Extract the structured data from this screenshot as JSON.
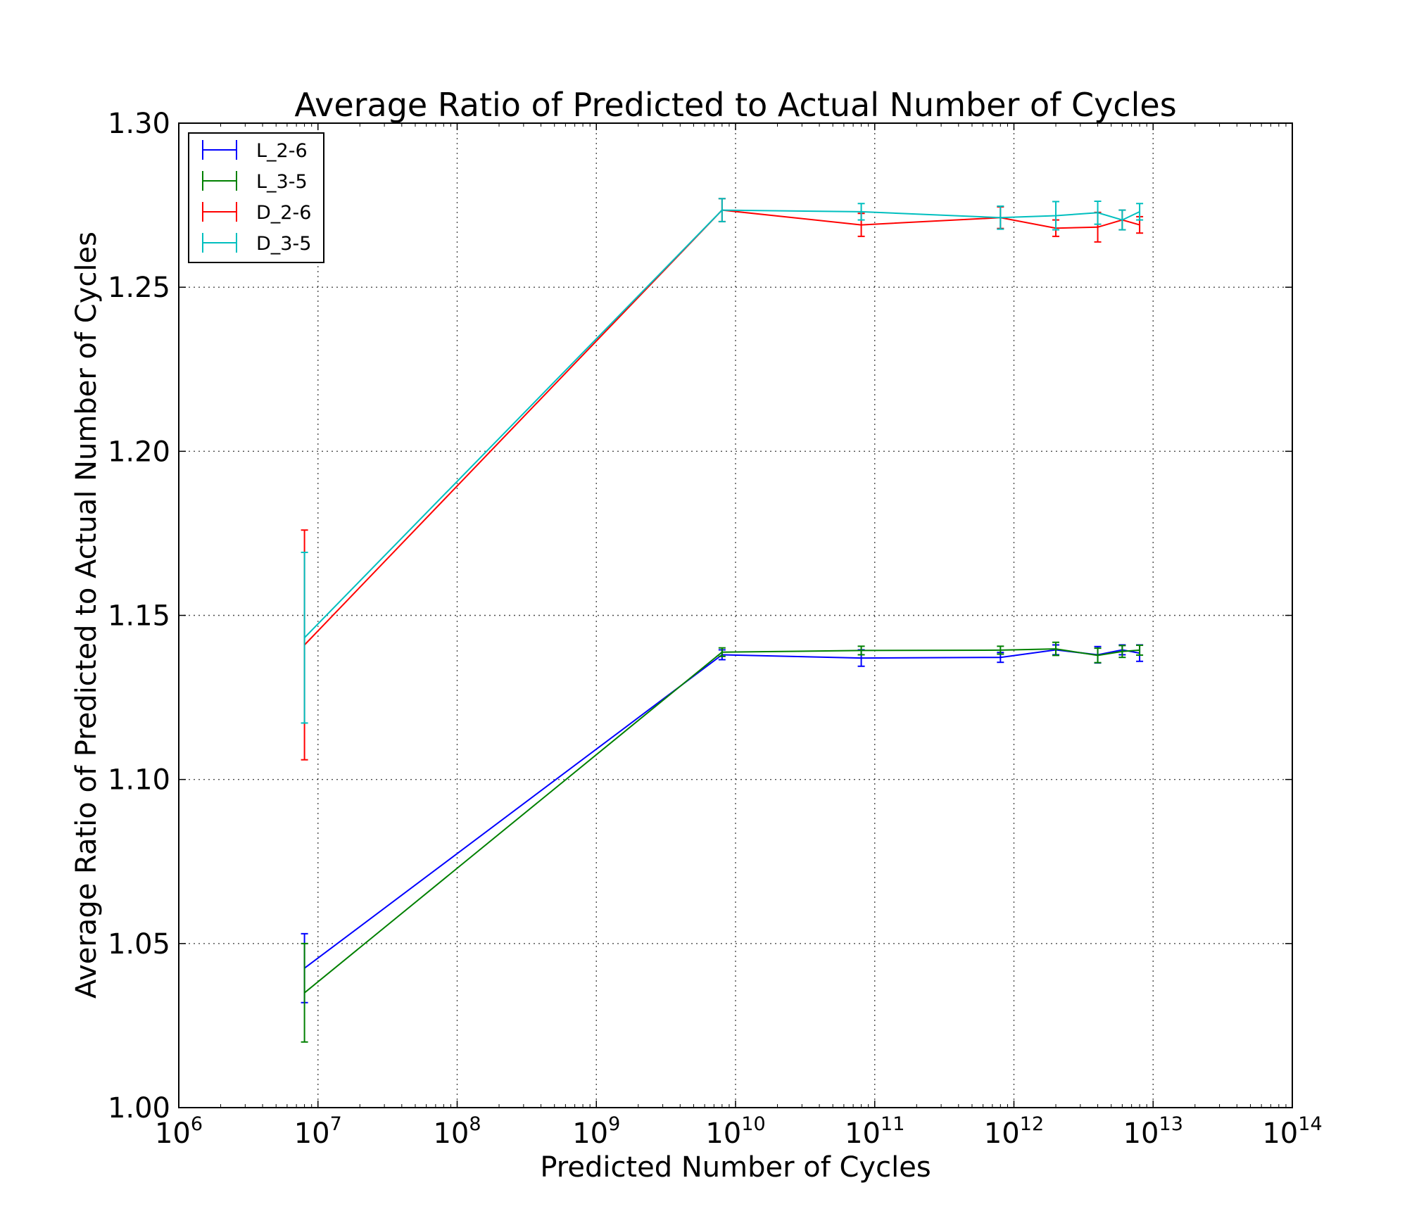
{
  "chart_data": {
    "type": "line",
    "title": "Average Ratio of Predicted to Actual Number of Cycles",
    "xlabel": "Predicted Number of Cycles",
    "ylabel": "Average Ratio of Predicted to Actual Number of Cycles",
    "xscale": "log",
    "xlim": [
      1000000,
      100000000000000
    ],
    "ylim": [
      1.0,
      1.3
    ],
    "x_ticks": [
      {
        "base": "10",
        "exp": "6"
      },
      {
        "base": "10",
        "exp": "7"
      },
      {
        "base": "10",
        "exp": "8"
      },
      {
        "base": "10",
        "exp": "9"
      },
      {
        "base": "10",
        "exp": "10"
      },
      {
        "base": "10",
        "exp": "11"
      },
      {
        "base": "10",
        "exp": "12"
      },
      {
        "base": "10",
        "exp": "13"
      },
      {
        "base": "10",
        "exp": "14"
      }
    ],
    "y_ticks": [
      "1.00",
      "1.05",
      "1.10",
      "1.15",
      "1.20",
      "1.25",
      "1.30"
    ],
    "grid": true,
    "legend_position": "top-left",
    "series": [
      {
        "name": "L_2-6",
        "color": "#0000ff",
        "points": [
          {
            "x": 8000000,
            "y": 1.0425,
            "err": 0.0105
          },
          {
            "x": 8000000000,
            "y": 1.138,
            "err": 0.0015
          },
          {
            "x": 80000000000,
            "y": 1.137,
            "err": 0.0025
          },
          {
            "x": 800000000000,
            "y": 1.1372,
            "err": 0.0015
          },
          {
            "x": 2000000000000,
            "y": 1.1395,
            "err": 0.0015
          },
          {
            "x": 4000000000000,
            "y": 1.138,
            "err": 0.0025
          },
          {
            "x": 6000000000000,
            "y": 1.1395,
            "err": 0.0015
          },
          {
            "x": 8000000000000,
            "y": 1.1385,
            "err": 0.0025
          }
        ]
      },
      {
        "name": "L_3-5",
        "color": "#008000",
        "points": [
          {
            "x": 8000000,
            "y": 1.035,
            "err": 0.015
          },
          {
            "x": 8000000000,
            "y": 1.1388,
            "err": 0.0013
          },
          {
            "x": 80000000000,
            "y": 1.1393,
            "err": 0.0013
          },
          {
            "x": 800000000000,
            "y": 1.1394,
            "err": 0.0012
          },
          {
            "x": 2000000000000,
            "y": 1.1398,
            "err": 0.002
          },
          {
            "x": 4000000000000,
            "y": 1.1378,
            "err": 0.0022
          },
          {
            "x": 6000000000000,
            "y": 1.139,
            "err": 0.0018
          },
          {
            "x": 8000000000000,
            "y": 1.1394,
            "err": 0.0015
          }
        ]
      },
      {
        "name": "D_2-6",
        "color": "#ff0000",
        "points": [
          {
            "x": 8000000,
            "y": 1.141,
            "err": 0.035
          },
          {
            "x": 8000000000,
            "y": 1.2735,
            "err": 0.0035
          },
          {
            "x": 80000000000,
            "y": 1.269,
            "err": 0.0035
          },
          {
            "x": 800000000000,
            "y": 1.2712,
            "err": 0.0033
          },
          {
            "x": 2000000000000,
            "y": 1.268,
            "err": 0.0025
          },
          {
            "x": 4000000000000,
            "y": 1.2683,
            "err": 0.0045
          },
          {
            "x": 6000000000000,
            "y": 1.2705,
            "err": 0.003
          },
          {
            "x": 8000000000000,
            "y": 1.269,
            "err": 0.0025
          }
        ]
      },
      {
        "name": "D_3-5",
        "color": "#00bfbf",
        "points": [
          {
            "x": 8000000,
            "y": 1.1432,
            "err": 0.026
          },
          {
            "x": 8000000000,
            "y": 1.2735,
            "err": 0.0035
          },
          {
            "x": 80000000000,
            "y": 1.273,
            "err": 0.0025
          },
          {
            "x": 800000000000,
            "y": 1.2712,
            "err": 0.0035
          },
          {
            "x": 2000000000000,
            "y": 1.2718,
            "err": 0.0043
          },
          {
            "x": 4000000000000,
            "y": 1.2727,
            "err": 0.0035
          },
          {
            "x": 6000000000000,
            "y": 1.2705,
            "err": 0.003
          },
          {
            "x": 8000000000000,
            "y": 1.273,
            "err": 0.0025
          }
        ]
      }
    ]
  }
}
